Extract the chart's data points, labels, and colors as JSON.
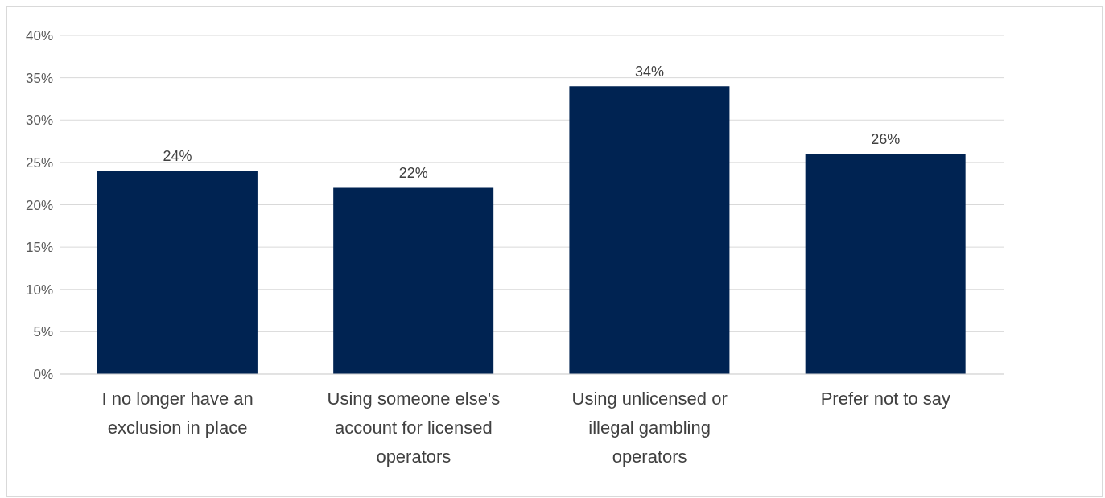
{
  "chart_data": {
    "type": "bar",
    "categories": [
      "I no longer have an exclusion in place",
      "Using someone else's account for licensed operators",
      "Using unlicensed or illegal gambling operators",
      "Prefer not to say"
    ],
    "values": [
      24,
      22,
      34,
      26
    ],
    "value_labels": [
      "24%",
      "22%",
      "34%",
      "26%"
    ],
    "color": "#002352",
    "ylim": [
      0,
      40
    ],
    "yticks": [
      {
        "value": 0,
        "label": "0%"
      },
      {
        "value": 5,
        "label": "5%"
      },
      {
        "value": 10,
        "label": "10%"
      },
      {
        "value": 15,
        "label": "15%"
      },
      {
        "value": 20,
        "label": "20%"
      },
      {
        "value": 25,
        "label": "25%"
      },
      {
        "value": 30,
        "label": "30%"
      },
      {
        "value": 35,
        "label": "35%"
      },
      {
        "value": 40,
        "label": "40%"
      }
    ],
    "grid": "y"
  }
}
